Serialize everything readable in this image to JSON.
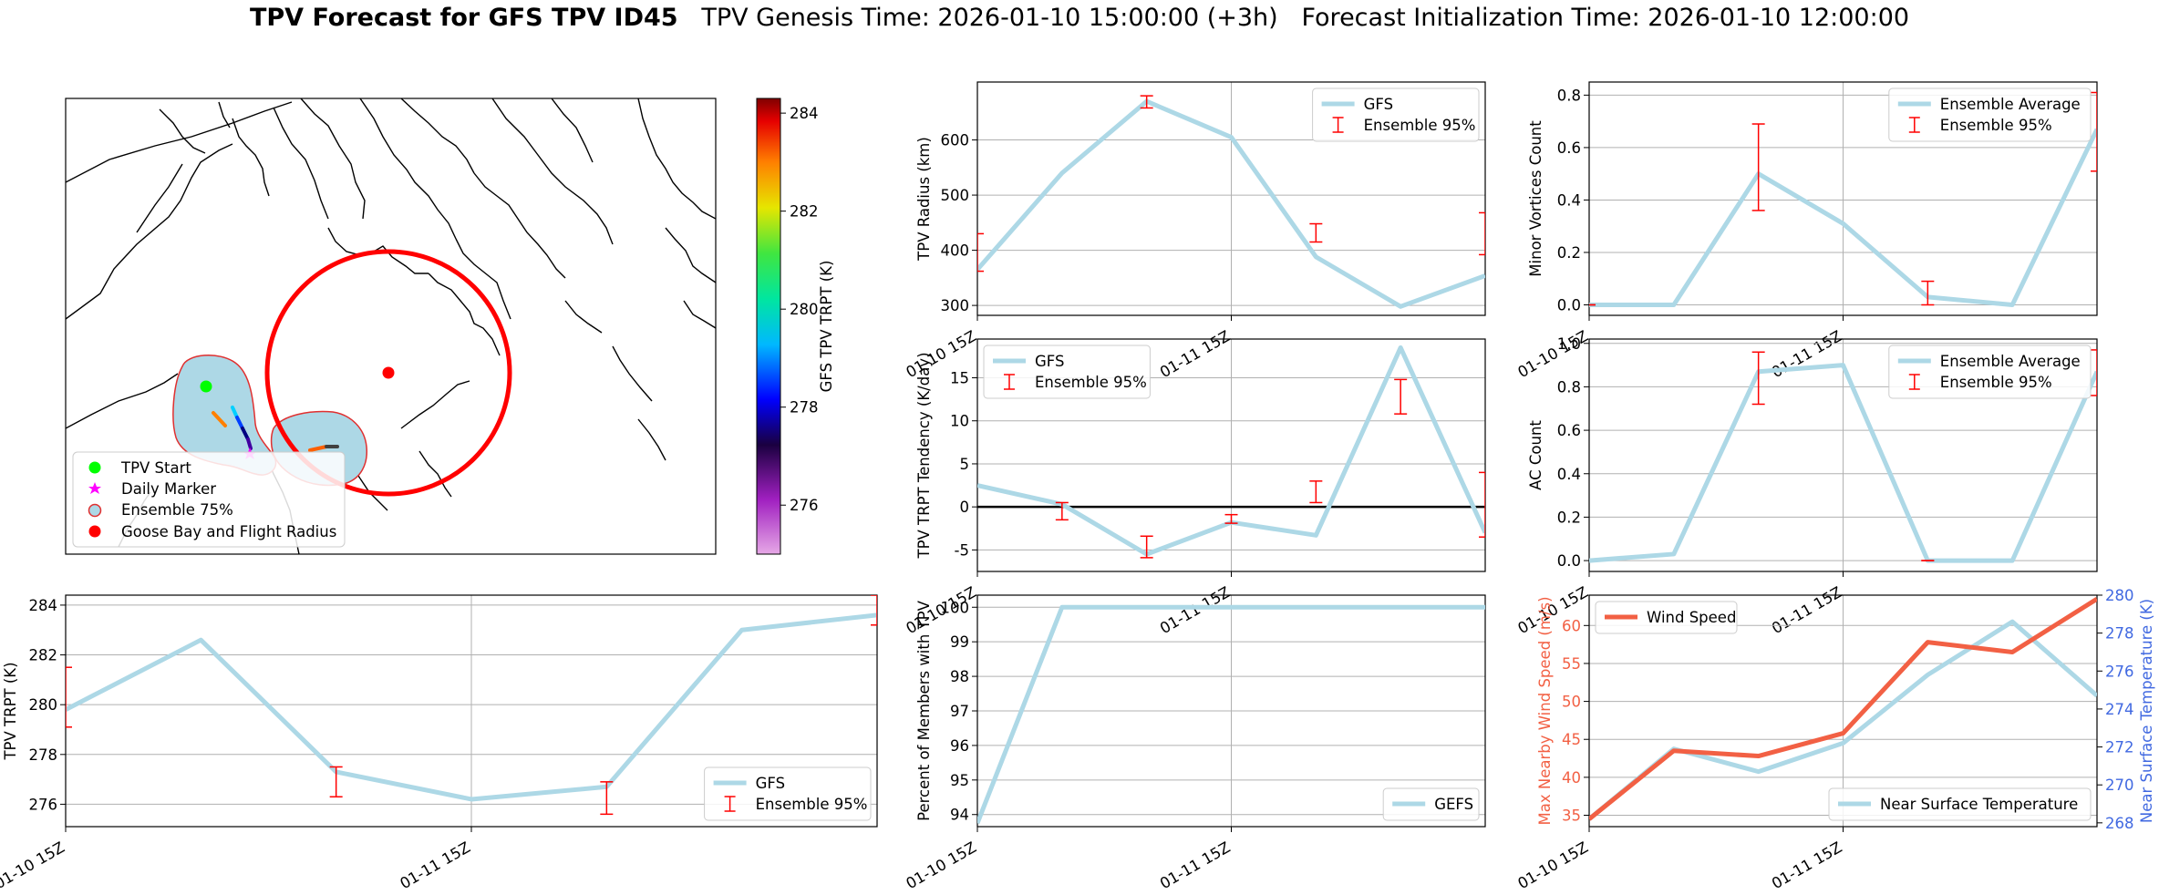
{
  "figure": {
    "title_bold": "TPV Forecast for GFS TPV ID45",
    "title_genesis": "TPV Genesis Time: 2026-01-10 15:00:00 (+3h)",
    "title_init": "Forecast Initialization Time: 2026-01-10 12:00:00"
  },
  "map": {
    "legend": [
      "TPV Start",
      "Daily Marker",
      "Ensemble 75%",
      "Goose Bay and Flight Radius"
    ],
    "colorbar": {
      "label": "GFS TPV TRPT (K)",
      "ticks": [
        276,
        278,
        280,
        282,
        284
      ],
      "range": [
        275.0,
        284.3
      ]
    },
    "colors": {
      "start": "#00ff00",
      "daily": "#ff00ff",
      "ensemble_fill": "#add8e6",
      "ensemble_edge": "#e03030",
      "goose": "#ff0000"
    }
  },
  "xaxis": {
    "tick_labels": [
      "01-10 15Z",
      "01-11 15Z"
    ],
    "range": [
      0,
      6
    ]
  },
  "chart_data": [
    {
      "id": "radius",
      "type": "line",
      "ylabel": "TPV Radius (km)",
      "ylim": [
        282,
        705
      ],
      "yticks": [
        300,
        400,
        500,
        600
      ],
      "series": [
        {
          "name": "GFS",
          "x": [
            0,
            1,
            2,
            3,
            4,
            5,
            6
          ],
          "values": [
            365,
            540,
            670,
            605,
            388,
            298,
            354
          ]
        }
      ],
      "errorbars": {
        "name": "Ensemble 95%",
        "x": [
          0,
          2,
          4,
          6
        ],
        "low": [
          362,
          658,
          415,
          392
        ],
        "high": [
          430,
          680,
          448,
          468
        ]
      },
      "legend": "top-right"
    },
    {
      "id": "minor",
      "type": "line",
      "ylabel": "Minor Vortices Count",
      "ylim": [
        -0.04,
        0.85
      ],
      "yticks": [
        0.0,
        0.2,
        0.4,
        0.6,
        0.8
      ],
      "series": [
        {
          "name": "Ensemble Average",
          "x": [
            0,
            1,
            2,
            3,
            4,
            5,
            6
          ],
          "values": [
            0.0,
            0.0,
            0.5,
            0.31,
            0.03,
            0.0,
            0.67
          ]
        }
      ],
      "errorbars": {
        "name": "Ensemble 95%",
        "x": [
          0,
          2,
          4,
          6
        ],
        "low": [
          0.0,
          0.36,
          0.0,
          0.51
        ],
        "high": [
          0.0,
          0.69,
          0.09,
          0.81
        ]
      },
      "legend": "top-right"
    },
    {
      "id": "tendency",
      "type": "line",
      "ylabel": "TPV TRPT Tendency (K/day)",
      "ylim": [
        -7.5,
        19.5
      ],
      "yticks": [
        -5,
        0,
        5,
        10,
        15
      ],
      "series": [
        {
          "name": "GFS",
          "x": [
            0,
            1,
            2,
            3,
            4,
            5,
            6
          ],
          "values": [
            2.5,
            0.3,
            -5.5,
            -1.8,
            -3.3,
            18.5,
            -3.0
          ]
        }
      ],
      "errorbars": {
        "name": "Ensemble 95%",
        "x": [
          1,
          2,
          3,
          4,
          5,
          6
        ],
        "low": [
          -1.5,
          -5.9,
          -1.9,
          0.5,
          10.8,
          -3.5
        ],
        "high": [
          0.5,
          -3.4,
          -0.9,
          3.0,
          14.8,
          4.0
        ]
      },
      "zeroline": true,
      "legend": "top-left"
    },
    {
      "id": "ac",
      "type": "line",
      "ylabel": "AC Count",
      "ylim": [
        -0.05,
        1.02
      ],
      "yticks": [
        0.0,
        0.2,
        0.4,
        0.6,
        0.8,
        1.0
      ],
      "series": [
        {
          "name": "Ensemble Average",
          "x": [
            0,
            1,
            2,
            3,
            4,
            5,
            6
          ],
          "values": [
            0.0,
            0.03,
            0.87,
            0.9,
            0.0,
            0.0,
            0.87
          ]
        }
      ],
      "errorbars": {
        "name": "Ensemble 95%",
        "x": [
          2,
          4,
          6
        ],
        "low": [
          0.72,
          0.0,
          0.76
        ],
        "high": [
          0.96,
          0.0,
          0.97
        ]
      },
      "legend": "top-right"
    },
    {
      "id": "trpt",
      "type": "line",
      "ylabel": "TPV TRPT (K)",
      "ylim": [
        275.1,
        284.4
      ],
      "yticks": [
        276,
        278,
        280,
        282,
        284
      ],
      "series": [
        {
          "name": "GFS",
          "x": [
            0,
            1,
            2,
            3,
            4,
            5,
            6
          ],
          "values": [
            279.8,
            282.6,
            277.3,
            276.2,
            276.7,
            283.0,
            283.6
          ]
        }
      ],
      "errorbars": {
        "name": "Ensemble 95%",
        "x": [
          0,
          2,
          4,
          6
        ],
        "low": [
          279.1,
          276.3,
          275.6,
          283.2
        ],
        "high": [
          281.5,
          277.5,
          276.9,
          284.4
        ]
      },
      "legend": "bottom-right"
    },
    {
      "id": "members",
      "type": "line",
      "ylabel": "Percent of Members with TPV",
      "ylim": [
        93.65,
        100.35
      ],
      "yticks": [
        94,
        95,
        96,
        97,
        98,
        99,
        100
      ],
      "series": [
        {
          "name": "GEFS",
          "x": [
            0,
            1,
            2,
            3,
            4,
            5,
            6
          ],
          "values": [
            93.75,
            100,
            100,
            100,
            100,
            100,
            100
          ]
        }
      ],
      "legend": "bottom-right"
    },
    {
      "id": "wind",
      "type": "line",
      "ylabel": "Max Nearby Wind Speed (m/s)",
      "ylabel_right": "Near Surface Temperature (K)",
      "ylim": [
        33.5,
        64.0
      ],
      "yticks": [
        35,
        40,
        45,
        50,
        55,
        60
      ],
      "ylim_right": [
        267.8,
        280.0
      ],
      "yticks_right": [
        268,
        270,
        272,
        274,
        276,
        278,
        280
      ],
      "series": [
        {
          "name": "Wind Speed",
          "x": [
            0,
            1,
            2,
            3,
            4,
            5,
            6
          ],
          "values": [
            34.5,
            43.5,
            42.8,
            45.8,
            57.8,
            56.5,
            63.5
          ]
        }
      ],
      "series_right": [
        {
          "name": "Near Surface Temperature",
          "x": [
            0,
            1,
            2,
            3,
            4,
            5,
            6
          ],
          "values": [
            268.2,
            271.9,
            270.7,
            272.2,
            275.8,
            278.6,
            274.7
          ]
        }
      ],
      "colors": {
        "wind": "#f26044",
        "temp": "#add8e6",
        "right_axis": "#4169e1"
      }
    }
  ]
}
